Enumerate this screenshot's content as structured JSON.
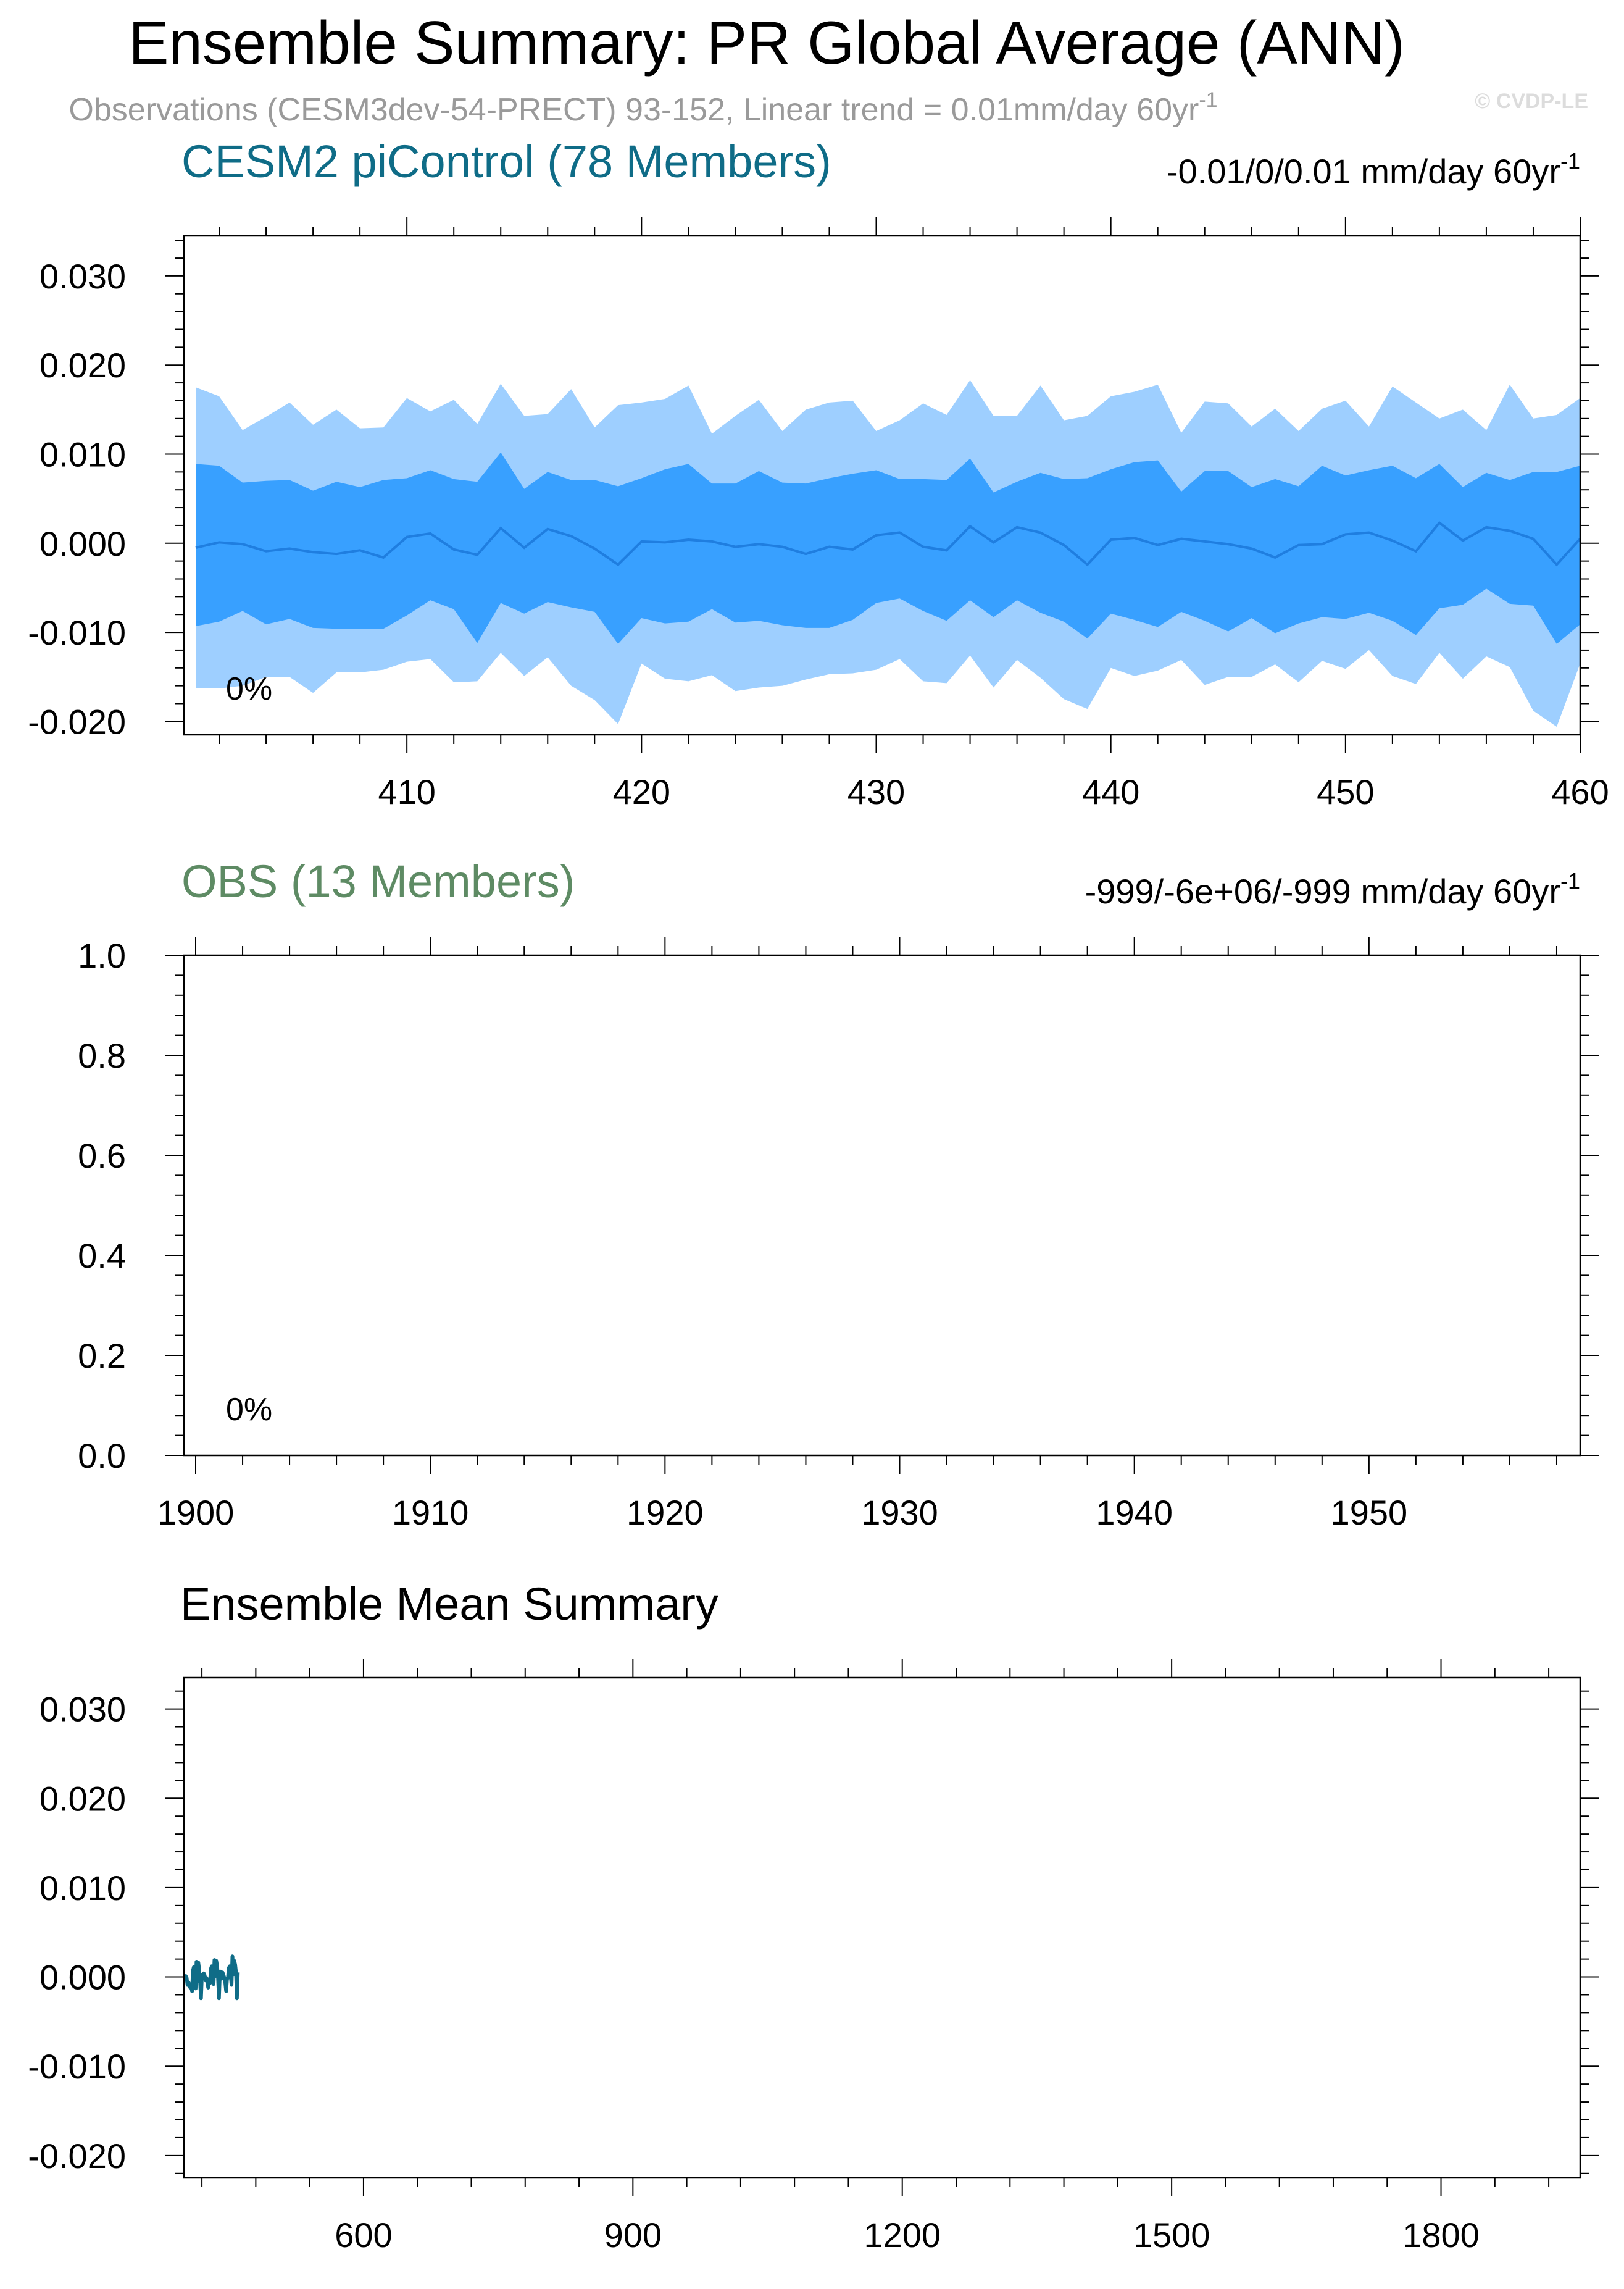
{
  "figure": {
    "title": "Ensemble Summary: PR Global Average (ANN)",
    "subtitle_main": "Observations (CESM3dev-54-PRECT) 93-152, Linear trend = 0.01mm/day 60yr",
    "subtitle_sup": "-1",
    "credit": "© CVDP-LE"
  },
  "colors": {
    "outer_band": "#9ecfff",
    "inner_band": "#38a0ff",
    "mean_line": "#1f7ee0",
    "panel1_title": "#0f6c87",
    "panel2_title": "#5e8b64",
    "summary_line": "#0f6c87",
    "subtitle_grey": "#9a9a9a"
  },
  "chart_data": [
    {
      "type": "area",
      "title": "CESM2 piControl (78 Members)",
      "stat_text": "-0.01/0/0.01 mm/day 60yr",
      "stat_sup": "-1",
      "annotation": "0%",
      "xlim": [
        400.5,
        460
      ],
      "ylim": [
        -0.0215,
        0.0345
      ],
      "x_ticks": [
        410,
        420,
        430,
        440,
        450,
        460
      ],
      "x_tick_labels": [
        "410",
        "420",
        "430",
        "440",
        "450",
        "460"
      ],
      "y_ticks": [
        -0.02,
        -0.01,
        0.0,
        0.01,
        0.02,
        0.03
      ],
      "y_tick_labels": [
        "-0.020",
        "-0.010",
        "0.000",
        "0.010",
        "0.020",
        "0.030"
      ],
      "x": [
        401,
        402,
        403,
        404,
        405,
        406,
        407,
        408,
        409,
        410,
        411,
        412,
        413,
        414,
        415,
        416,
        417,
        418,
        419,
        420,
        421,
        422,
        423,
        424,
        425,
        426,
        427,
        428,
        429,
        430,
        431,
        432,
        433,
        434,
        435,
        436,
        437,
        438,
        439,
        440,
        441,
        442,
        443,
        444,
        445,
        446,
        447,
        448,
        449,
        450,
        451,
        452,
        453,
        454,
        455,
        456,
        457,
        458,
        459,
        460
      ],
      "series": [
        {
          "name": "outer_upper",
          "values": [
            0.0175,
            0.0165,
            0.0127,
            0.0142,
            0.0158,
            0.0133,
            0.015,
            0.0129,
            0.013,
            0.0163,
            0.0148,
            0.0161,
            0.0134,
            0.0179,
            0.0143,
            0.0145,
            0.0173,
            0.013,
            0.0155,
            0.0158,
            0.0162,
            0.0177,
            0.0123,
            0.0143,
            0.0161,
            0.0126,
            0.015,
            0.0158,
            0.016,
            0.0126,
            0.0138,
            0.0157,
            0.0144,
            0.0183,
            0.0143,
            0.0143,
            0.0177,
            0.0138,
            0.0143,
            0.0165,
            0.017,
            0.0178,
            0.0124,
            0.0159,
            0.0157,
            0.0131,
            0.0151,
            0.0126,
            0.0151,
            0.016,
            0.0131,
            0.0176,
            0.0158,
            0.014,
            0.015,
            0.0127,
            0.0178,
            0.014,
            0.0144,
            0.0163
          ]
        },
        {
          "name": "inner_upper",
          "values": [
            0.0089,
            0.0087,
            0.0068,
            0.007,
            0.0071,
            0.0059,
            0.0069,
            0.0063,
            0.0071,
            0.0073,
            0.0082,
            0.0072,
            0.0069,
            0.0102,
            0.0061,
            0.008,
            0.0071,
            0.0071,
            0.0064,
            0.0073,
            0.0083,
            0.0089,
            0.0067,
            0.0067,
            0.0081,
            0.0068,
            0.0067,
            0.0073,
            0.0078,
            0.0082,
            0.0072,
            0.0072,
            0.0071,
            0.0095,
            0.0057,
            0.0069,
            0.0079,
            0.0072,
            0.0073,
            0.0083,
            0.0091,
            0.0093,
            0.0058,
            0.0081,
            0.0081,
            0.0063,
            0.0072,
            0.0064,
            0.0087,
            0.0076,
            0.0082,
            0.0087,
            0.0073,
            0.0089,
            0.0063,
            0.0079,
            0.0071,
            0.008,
            0.008,
            0.0087
          ]
        },
        {
          "name": "mean",
          "values": [
            -0.0005,
            0.0001,
            -0.0001,
            -0.0009,
            -0.0006,
            -0.001,
            -0.0012,
            -0.0008,
            -0.0016,
            0.0007,
            0.0011,
            -0.0007,
            -0.0013,
            0.0017,
            -0.0005,
            0.0016,
            0.0008,
            -0.0006,
            -0.0024,
            0.0002,
            0.0001,
            0.0004,
            0.0002,
            -0.0004,
            -0.0001,
            -0.0004,
            -0.0012,
            -0.0004,
            -0.0007,
            0.0009,
            0.0012,
            -0.0004,
            -0.0008,
            0.0019,
            0.0001,
            0.0018,
            0.0012,
            -0.0002,
            -0.0024,
            0.0004,
            0.0006,
            -0.0002,
            0.0005,
            0.0002,
            -0.0001,
            -0.0006,
            -0.0016,
            -0.0002,
            -0.0001,
            0.001,
            0.0012,
            0.0003,
            -0.0009,
            0.0023,
            0.0003,
            0.0018,
            0.0014,
            0.0005,
            -0.0024,
            0.0005
          ]
        },
        {
          "name": "inner_lower",
          "values": [
            -0.0093,
            -0.0088,
            -0.0076,
            -0.0091,
            -0.0085,
            -0.0095,
            -0.0096,
            -0.0096,
            -0.0096,
            -0.0081,
            -0.0064,
            -0.0074,
            -0.0112,
            -0.0067,
            -0.0079,
            -0.0066,
            -0.0072,
            -0.0077,
            -0.0113,
            -0.0084,
            -0.009,
            -0.0088,
            -0.0074,
            -0.0089,
            -0.0087,
            -0.0092,
            -0.0095,
            -0.0095,
            -0.0086,
            -0.0067,
            -0.0062,
            -0.0076,
            -0.0087,
            -0.0064,
            -0.0083,
            -0.0064,
            -0.0078,
            -0.0088,
            -0.0107,
            -0.0079,
            -0.0086,
            -0.0094,
            -0.0077,
            -0.0087,
            -0.0099,
            -0.0084,
            -0.0101,
            -0.009,
            -0.0083,
            -0.0085,
            -0.0078,
            -0.0087,
            -0.0103,
            -0.0073,
            -0.0069,
            -0.0051,
            -0.0068,
            -0.007,
            -0.0113,
            -0.0091
          ]
        },
        {
          "name": "outer_lower",
          "values": [
            -0.0163,
            -0.0163,
            -0.016,
            -0.015,
            -0.015,
            -0.0168,
            -0.0145,
            -0.0145,
            -0.0142,
            -0.0133,
            -0.013,
            -0.0156,
            -0.0155,
            -0.0123,
            -0.0149,
            -0.0128,
            -0.016,
            -0.0176,
            -0.0203,
            -0.0135,
            -0.0152,
            -0.0155,
            -0.0148,
            -0.0166,
            -0.0162,
            -0.016,
            -0.0153,
            -0.0147,
            -0.0146,
            -0.0142,
            -0.013,
            -0.0155,
            -0.0157,
            -0.0126,
            -0.0162,
            -0.0131,
            -0.0151,
            -0.0175,
            -0.0186,
            -0.014,
            -0.0149,
            -0.0143,
            -0.0131,
            -0.0159,
            -0.015,
            -0.015,
            -0.0136,
            -0.0156,
            -0.0132,
            -0.0141,
            -0.012,
            -0.0149,
            -0.0158,
            -0.0123,
            -0.0152,
            -0.0127,
            -0.0139,
            -0.0188,
            -0.0206,
            -0.0135
          ]
        }
      ]
    },
    {
      "type": "line",
      "title": "OBS (13 Members)",
      "stat_text": "-999/-6e+06/-999 mm/day 60yr",
      "stat_sup": "-1",
      "annotation": "0%",
      "xlim": [
        1899.5,
        1959
      ],
      "ylim": [
        0.0,
        1.0
      ],
      "x_ticks": [
        1900,
        1910,
        1920,
        1930,
        1940,
        1950
      ],
      "x_tick_labels": [
        "1900",
        "1910",
        "1920",
        "1930",
        "1940",
        "1950"
      ],
      "y_ticks": [
        0.0,
        0.2,
        0.4,
        0.6,
        0.8,
        1.0
      ],
      "y_tick_labels": [
        "0.0",
        "0.2",
        "0.4",
        "0.6",
        "0.8",
        "1.0"
      ],
      "series": []
    },
    {
      "type": "line",
      "title": "Ensemble Mean Summary",
      "xlim": [
        400,
        1955
      ],
      "ylim": [
        -0.0225,
        0.0335
      ],
      "x_ticks": [
        600,
        900,
        1200,
        1500,
        1800
      ],
      "x_tick_labels": [
        "600",
        "900",
        "1200",
        "1500",
        "1800"
      ],
      "y_ticks": [
        -0.02,
        -0.01,
        0.0,
        0.01,
        0.02,
        0.03
      ],
      "y_tick_labels": [
        "-0.020",
        "-0.010",
        "0.000",
        "0.010",
        "0.020",
        "0.030"
      ],
      "series": [
        {
          "name": "",
          "x_start": 401,
          "x_step": 1,
          "values": [
            -0.0005,
            0.0001,
            -0.0001,
            -0.0009,
            -0.0006,
            -0.001,
            -0.0012,
            -0.0008,
            -0.0016,
            0.0007,
            0.0011,
            -0.0007,
            -0.0013,
            0.0017,
            -0.0005,
            0.0016,
            0.0008,
            -0.0006,
            -0.0024,
            0.0002,
            0.0001,
            0.0004,
            0.0002,
            -0.0004,
            -0.0001,
            -0.0004,
            -0.0012,
            -0.0004,
            -0.0007,
            0.0009,
            0.0012,
            -0.0004,
            -0.0008,
            0.0019,
            0.0001,
            0.0018,
            0.0012,
            -0.0002,
            -0.0024,
            0.0004,
            0.0006,
            -0.0002,
            0.0005,
            0.0002,
            -0.0001,
            -0.0006,
            -0.0016,
            -0.0002,
            -0.0001,
            0.001,
            0.0012,
            0.0003,
            -0.0009,
            0.0023,
            0.0003,
            0.0018,
            0.0014,
            0.0005,
            -0.0024,
            0.0005
          ]
        }
      ]
    }
  ]
}
